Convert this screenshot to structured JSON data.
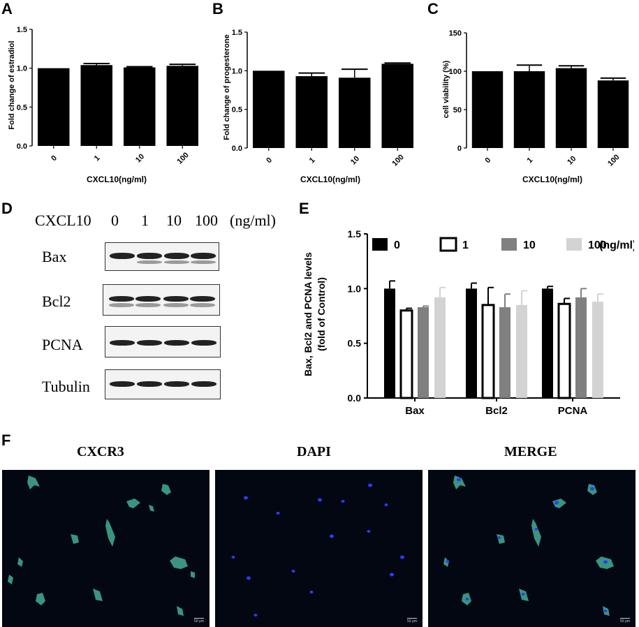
{
  "panels": {
    "a": "A",
    "b": "B",
    "c": "C",
    "d": "D",
    "e": "E",
    "f": "F"
  },
  "colors": {
    "bar_black": "#000000",
    "bar_gray": "#808080",
    "bar_light": "#d3d3d3"
  },
  "chart_data": [
    {
      "type": "bar",
      "panel": "A",
      "categories": [
        "0",
        "1",
        "10",
        "100"
      ],
      "values": [
        1.0,
        1.04,
        1.01,
        1.03
      ],
      "errors": [
        0.0,
        0.02,
        0.01,
        0.02
      ],
      "xlabel": "CXCL10(ng/ml)",
      "ylabel": "Fold change of estradiol",
      "ylim": [
        0,
        1.5
      ],
      "yticks": [
        "0.0",
        "0.5",
        "1.0",
        "1.5"
      ]
    },
    {
      "type": "bar",
      "panel": "B",
      "categories": [
        "0",
        "1",
        "10",
        "100"
      ],
      "values": [
        1.0,
        0.93,
        0.91,
        1.09
      ],
      "errors": [
        0.0,
        0.04,
        0.11,
        0.01
      ],
      "xlabel": "CXCL10(ng/ml)",
      "ylabel": "Fold change of progesterone",
      "ylim": [
        0,
        1.5
      ],
      "yticks": [
        "0.0",
        "0.5",
        "1.0",
        "1.5"
      ]
    },
    {
      "type": "bar",
      "panel": "C",
      "categories": [
        "0",
        "1",
        "10",
        "100"
      ],
      "values": [
        100,
        100,
        104,
        88
      ],
      "errors": [
        0,
        8,
        3,
        3
      ],
      "xlabel": "CXCL10(ng/ml)",
      "ylabel": "cell viability (%)",
      "ylim": [
        0,
        150
      ],
      "yticks": [
        "0",
        "50",
        "100",
        "150"
      ]
    },
    {
      "type": "bar",
      "panel": "E",
      "categories": [
        "Bax",
        "Bcl2",
        "PCNA"
      ],
      "series": [
        {
          "name": "0",
          "values": [
            1.0,
            1.0,
            1.0
          ],
          "errors": [
            0.07,
            0.05,
            0.02
          ]
        },
        {
          "name": "1",
          "values": [
            0.8,
            0.85,
            0.86
          ],
          "errors": [
            0.02,
            0.16,
            0.05
          ]
        },
        {
          "name": "10",
          "values": [
            0.83,
            0.83,
            0.92
          ],
          "errors": [
            0.01,
            0.12,
            0.08
          ]
        },
        {
          "name": "100",
          "values": [
            0.92,
            0.85,
            0.88
          ],
          "errors": [
            0.09,
            0.13,
            0.07
          ]
        }
      ],
      "legend_suffix": "(ng/ml)",
      "ylabel": "Bax, Bcl2 and PCNA levels (fold of Control)",
      "ylabel_line1": "Bax, Bcl2 and PCNA levels",
      "ylabel_line2": "(fold of Control)",
      "ylim": [
        0,
        1.5
      ],
      "yticks": [
        "0.0",
        "0.5",
        "1.0",
        "1.5"
      ],
      "legend_position": "top"
    }
  ],
  "western_blot": {
    "header_label": "CXCL10",
    "header_doses": [
      "0",
      "1",
      "10",
      "100"
    ],
    "header_unit": "(ng/ml)",
    "rows": [
      "Bax",
      "Bcl2",
      "PCNA",
      "Tubulin"
    ]
  },
  "fluorescence": {
    "titles": [
      "CXCR3",
      "DAPI",
      "MERGE"
    ],
    "scale_bar": "50 μm"
  }
}
